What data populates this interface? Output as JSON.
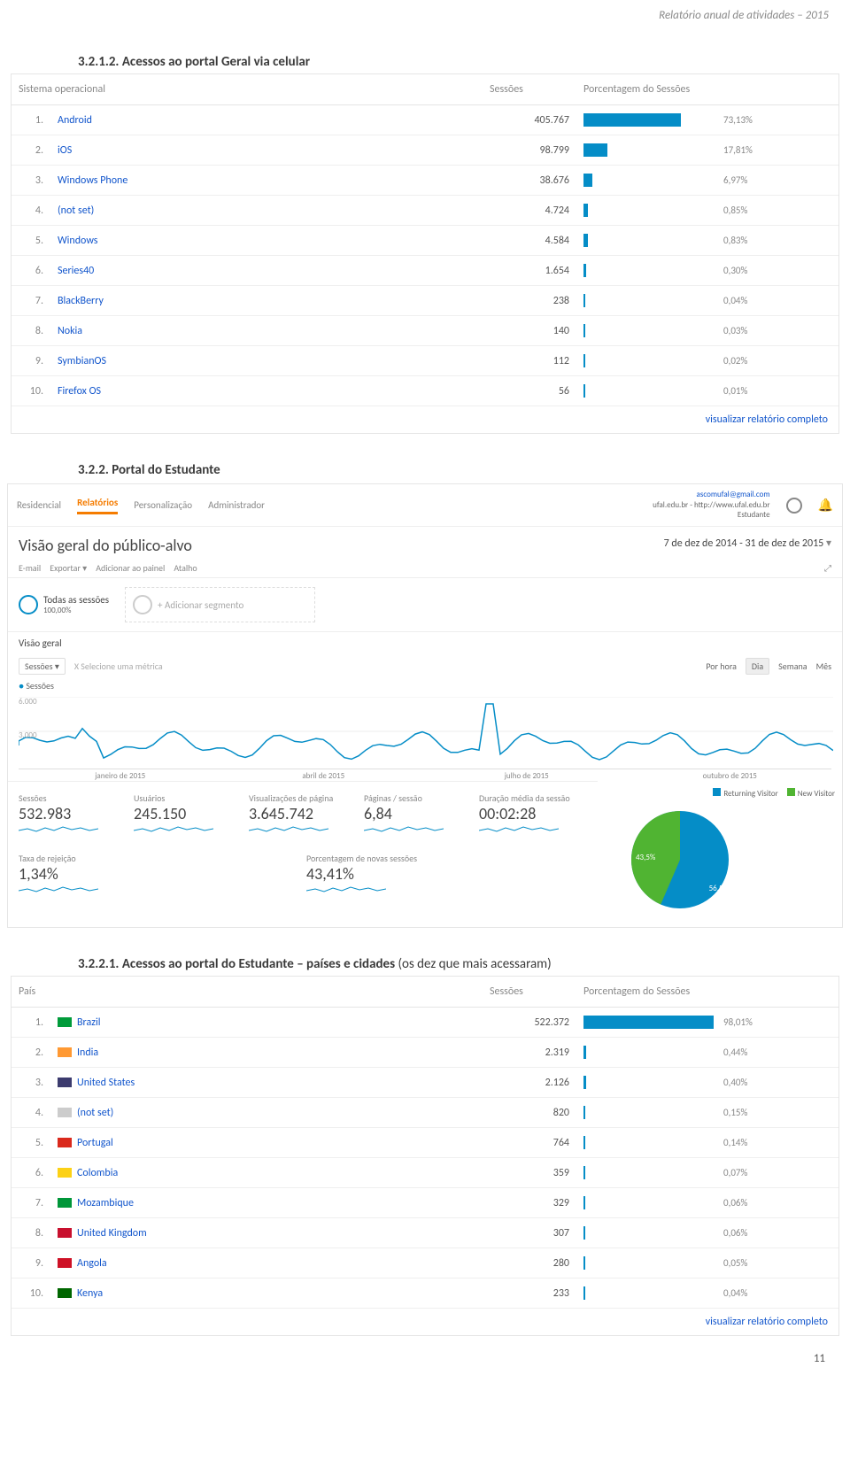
{
  "page_header": "Relatório anual de atividades – 2015",
  "section_1_title": "3.2.1.2. Acessos ao portal Geral via celular",
  "section_2_title": "3.2.2. Portal do Estudante",
  "section_3_title": "3.2.2.1. Acessos ao portal do Estudante – países e cidades (os dez que mais acessaram)",
  "page_number": "11",
  "view_full_report": "visualizar relatório completo",
  "os_table": {
    "col1": "Sistema operacional",
    "col2": "Sessões",
    "col3": "Porcentagem do Sessões",
    "rows": [
      {
        "rank": "1.",
        "name": "Android",
        "sessions": "405.767",
        "pct": "73,13%",
        "bar": 73.13
      },
      {
        "rank": "2.",
        "name": "iOS",
        "sessions": "98.799",
        "pct": "17,81%",
        "bar": 17.81
      },
      {
        "rank": "3.",
        "name": "Windows Phone",
        "sessions": "38.676",
        "pct": "6,97%",
        "bar": 6.97
      },
      {
        "rank": "4.",
        "name": "(not set)",
        "sessions": "4.724",
        "pct": "0,85%",
        "bar": 3
      },
      {
        "rank": "5.",
        "name": "Windows",
        "sessions": "4.584",
        "pct": "0,83%",
        "bar": 3
      },
      {
        "rank": "6.",
        "name": "Series40",
        "sessions": "1.654",
        "pct": "0,30%",
        "bar": 2
      },
      {
        "rank": "7.",
        "name": "BlackBerry",
        "sessions": "238",
        "pct": "0,04%",
        "bar": 1.5
      },
      {
        "rank": "8.",
        "name": "Nokia",
        "sessions": "140",
        "pct": "0,03%",
        "bar": 1.5
      },
      {
        "rank": "9.",
        "name": "SymbianOS",
        "sessions": "112",
        "pct": "0,02%",
        "bar": 1.5
      },
      {
        "rank": "10.",
        "name": "Firefox OS",
        "sessions": "56",
        "pct": "0,01%",
        "bar": 1.5
      }
    ]
  },
  "country_table": {
    "col1": "País",
    "col2": "Sessões",
    "col3": "Porcentagem do Sessões",
    "rows": [
      {
        "rank": "1.",
        "flag": "#009b3a",
        "name": "Brazil",
        "sessions": "522.372",
        "pct": "98,01%",
        "bar": 98.01
      },
      {
        "rank": "2.",
        "flag": "#ff9933",
        "name": "India",
        "sessions": "2.319",
        "pct": "0,44%",
        "bar": 2
      },
      {
        "rank": "3.",
        "flag": "#3c3b6e",
        "name": "United States",
        "sessions": "2.126",
        "pct": "0,40%",
        "bar": 2
      },
      {
        "rank": "4.",
        "flag": "#cccccc",
        "name": "(not set)",
        "sessions": "820",
        "pct": "0,15%",
        "bar": 1.5
      },
      {
        "rank": "5.",
        "flag": "#da291c",
        "name": "Portugal",
        "sessions": "764",
        "pct": "0,14%",
        "bar": 1.5
      },
      {
        "rank": "6.",
        "flag": "#fcd116",
        "name": "Colombia",
        "sessions": "359",
        "pct": "0,07%",
        "bar": 1.5
      },
      {
        "rank": "7.",
        "flag": "#009639",
        "name": "Mozambique",
        "sessions": "329",
        "pct": "0,06%",
        "bar": 1.5
      },
      {
        "rank": "8.",
        "flag": "#c8102e",
        "name": "United Kingdom",
        "sessions": "307",
        "pct": "0,06%",
        "bar": 1.5
      },
      {
        "rank": "9.",
        "flag": "#ce1126",
        "name": "Angola",
        "sessions": "280",
        "pct": "0,05%",
        "bar": 1.5
      },
      {
        "rank": "10.",
        "flag": "#006600",
        "name": "Kenya",
        "sessions": "233",
        "pct": "0,04%",
        "bar": 1.5
      }
    ]
  },
  "ga": {
    "tabs": [
      "Residencial",
      "Relatórios",
      "Personalização",
      "Administrador"
    ],
    "account_email": "ascomufal@gmail.com",
    "account_line2": "ufal.edu.br - http://www.ufal.edu.br",
    "account_line3": "Estudante",
    "title": "Visão geral do público-alvo",
    "date_range": "7 de dez de 2014 - 31 de dez de 2015",
    "toolbar": [
      "E-mail",
      "Exportar",
      "Adicionar ao painel",
      "Atalho"
    ],
    "seg_all": "Todas as sessões",
    "seg_all_pct": "100,00%",
    "seg_add": "+ Adicionar segmento",
    "vg": "Visão geral",
    "sess_pill": "Sessões",
    "vs": "X  Selecione uma métrica",
    "granularity": [
      "Por hora",
      "Dia",
      "Semana",
      "Mês"
    ],
    "series_label": "Sessões",
    "y_max": "6.000",
    "y_mid": "3.000",
    "x_labels": [
      "janeiro de 2015",
      "abril de 2015",
      "julho de 2015",
      "outubro de 2015"
    ],
    "chart_color": "#058dc7",
    "metrics": [
      {
        "label": "Sessões",
        "value": "532.983"
      },
      {
        "label": "Usuários",
        "value": "245.150"
      },
      {
        "label": "Visualizações de página",
        "value": "3.645.742"
      },
      {
        "label": "Páginas / sessão",
        "value": "6,84"
      },
      {
        "label": "Duração média da sessão",
        "value": "00:02:28"
      }
    ],
    "metrics2": [
      {
        "label": "Taxa de rejeição",
        "value": "1,34%"
      },
      {
        "label": "Porcentagem de novas sessões",
        "value": "43,41%"
      }
    ],
    "pie": {
      "legend": [
        {
          "label": "Returning Visitor",
          "color": "#058dc7"
        },
        {
          "label": "New Visitor",
          "color": "#50b432"
        }
      ],
      "returning_pct": "56,5%",
      "new_pct": "43,5%",
      "returning_color": "#058dc7",
      "new_color": "#50b432"
    }
  }
}
